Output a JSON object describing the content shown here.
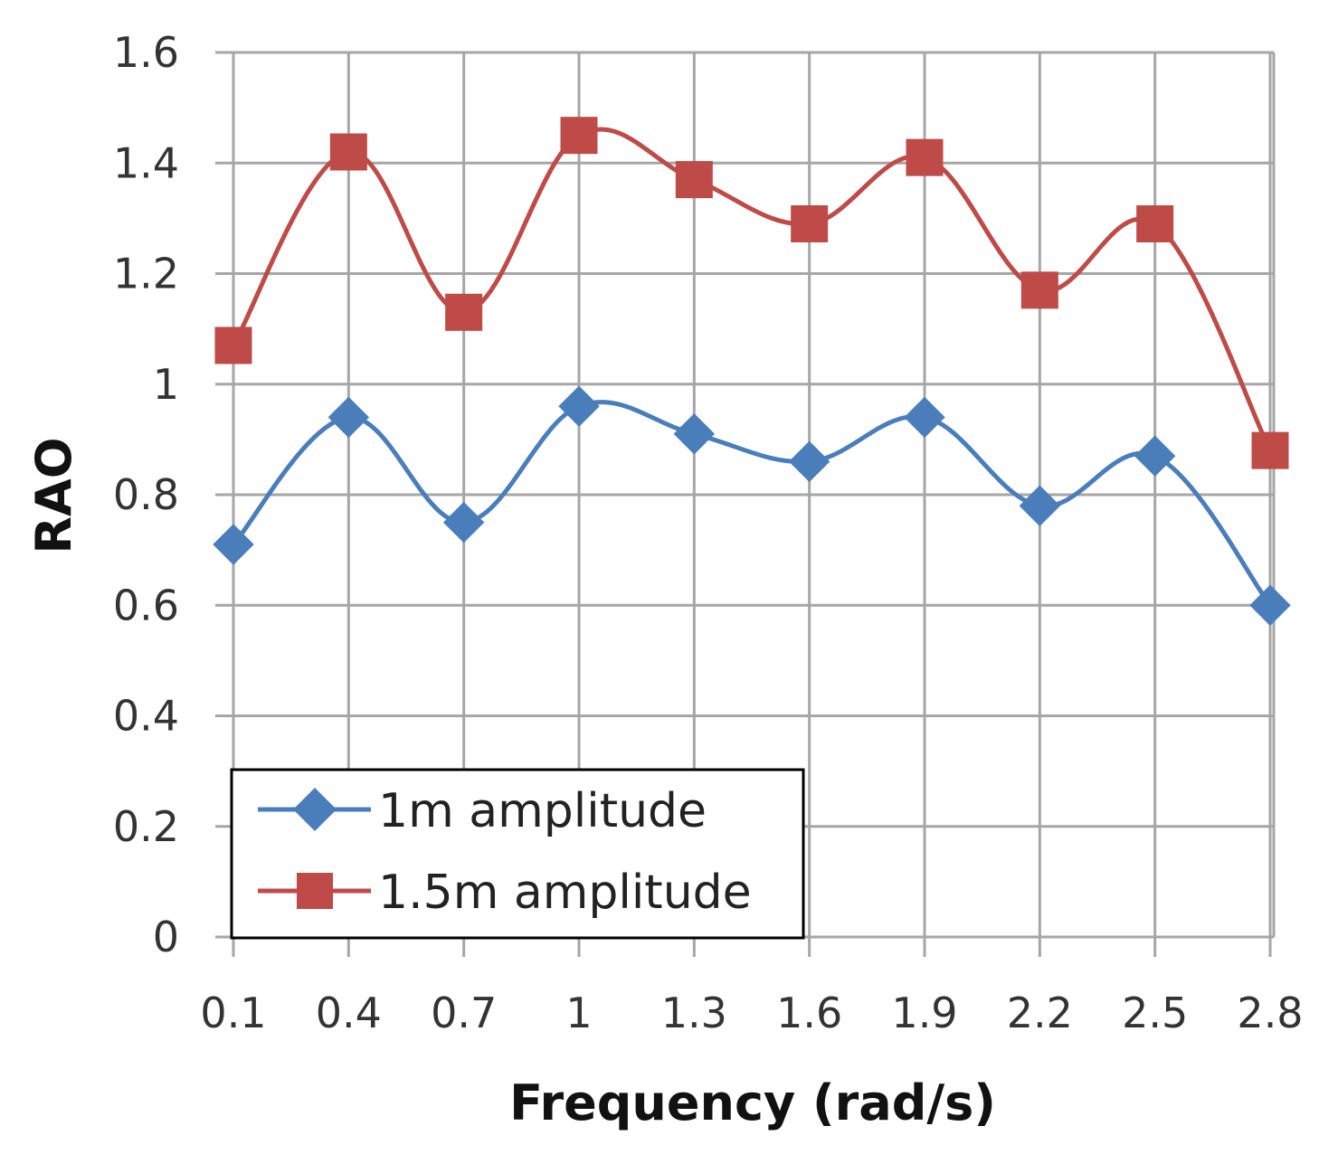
{
  "chart_data": {
    "type": "line",
    "title": "",
    "xlabel": "Frequency (rad/s)",
    "ylabel": "RAO",
    "x": [
      0.1,
      0.4,
      0.7,
      1,
      1.3,
      1.6,
      1.9,
      2.2,
      2.5,
      2.8
    ],
    "x_tick_labels": [
      "0.1",
      "0.4",
      "0.7",
      "1",
      "1.3",
      "1.6",
      "1.9",
      "2.2",
      "2.5",
      "2.8"
    ],
    "ylim": [
      0,
      1.6
    ],
    "y_ticks": [
      0,
      0.2,
      0.4,
      0.6,
      0.8,
      1,
      1.2,
      1.4,
      1.6
    ],
    "y_tick_labels": [
      "0",
      "0.2",
      "0.4",
      "0.6",
      "0.8",
      "1",
      "1.2",
      "1.4",
      "1.6"
    ],
    "grid": true,
    "legend_position": "bottom-left",
    "series": [
      {
        "name": "1m amplitude",
        "marker": "diamond",
        "color": "#4a7ebb",
        "values": [
          0.71,
          0.94,
          0.75,
          0.96,
          0.91,
          0.86,
          0.94,
          0.78,
          0.87,
          0.6
        ]
      },
      {
        "name": "1.5m amplitude",
        "marker": "square",
        "color": "#be4b48",
        "values": [
          1.07,
          1.42,
          1.13,
          1.45,
          1.37,
          1.29,
          1.41,
          1.17,
          1.29,
          0.88
        ]
      }
    ]
  }
}
